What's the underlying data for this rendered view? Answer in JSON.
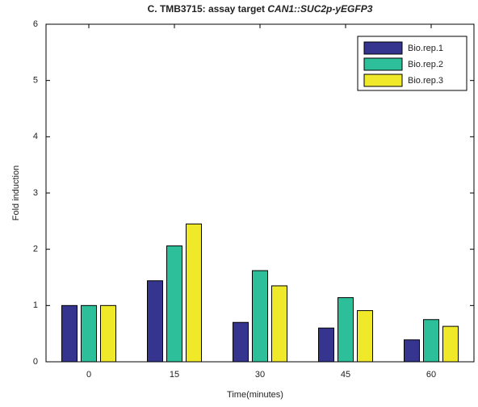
{
  "chart_data": {
    "type": "bar",
    "title": [
      "C. TMB3715: assay target",
      "CAN1::SUC2p-yEGFP3"
    ],
    "x_label": "Time(minutes)",
    "y_label": "Fold induction",
    "categories": [
      "0",
      "15",
      "30",
      "45",
      "60"
    ],
    "series": [
      {
        "name": "Bio.rep.1",
        "color": "#35348f",
        "values": [
          1,
          1.44,
          0.7,
          0.6,
          0.39
        ]
      },
      {
        "name": "Bio.rep.2",
        "color": "#2cbf9a",
        "values": [
          1,
          2.06,
          1.62,
          1.14,
          0.75
        ]
      },
      {
        "name": "Bio.rep.3",
        "color": "#f0e92a",
        "values": [
          1,
          2.45,
          1.35,
          0.91,
          0.63
        ]
      }
    ],
    "ylim": [
      0,
      6
    ],
    "yticks": [
      0,
      1,
      2,
      3,
      4,
      5,
      6
    ],
    "grid": false,
    "legend": "upper right"
  }
}
